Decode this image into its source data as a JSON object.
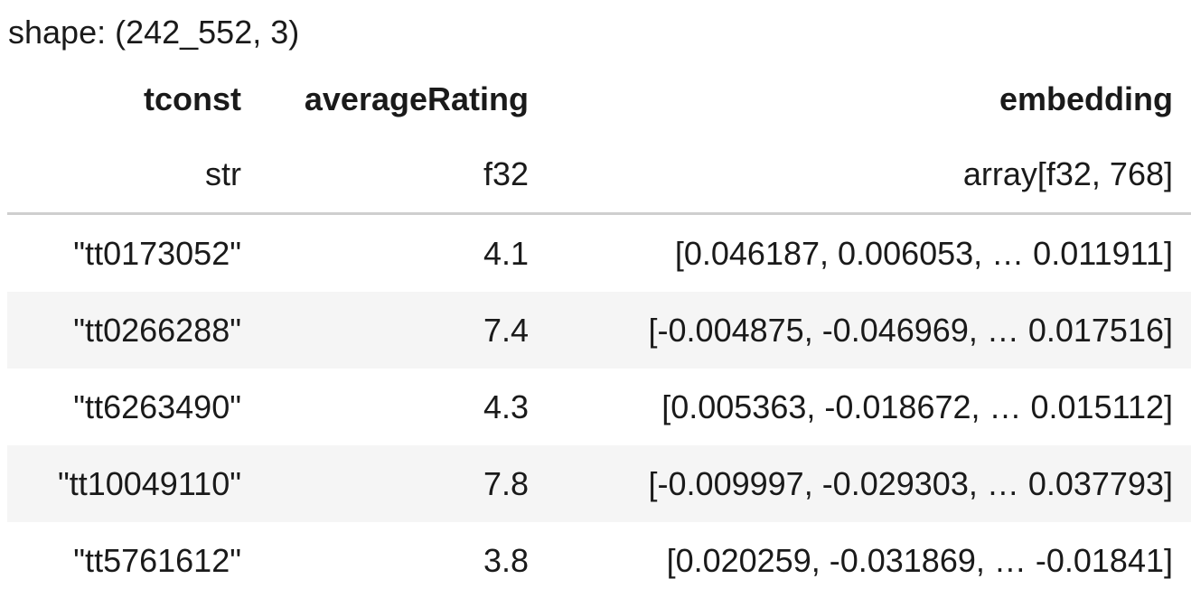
{
  "shape_label": "shape: (242_552, 3)",
  "columns": [
    {
      "name": "tconst",
      "dtype": "str"
    },
    {
      "name": "averageRating",
      "dtype": "f32"
    },
    {
      "name": "embedding",
      "dtype": "array[f32, 768]"
    }
  ],
  "rows": [
    {
      "tconst": "\"tt0173052\"",
      "averageRating": "4.1",
      "embedding": "[0.046187, 0.006053, … 0.011911]"
    },
    {
      "tconst": "\"tt0266288\"",
      "averageRating": "7.4",
      "embedding": "[-0.004875, -0.046969, … 0.017516]"
    },
    {
      "tconst": "\"tt6263490\"",
      "averageRating": "4.3",
      "embedding": "[0.005363, -0.018672, … 0.015112]"
    },
    {
      "tconst": "\"tt10049110\"",
      "averageRating": "7.8",
      "embedding": "[-0.009997, -0.029303, … 0.037793]"
    },
    {
      "tconst": "\"tt5761612\"",
      "averageRating": "3.8",
      "embedding": "[0.020259, -0.031869, … -0.01841]"
    }
  ]
}
